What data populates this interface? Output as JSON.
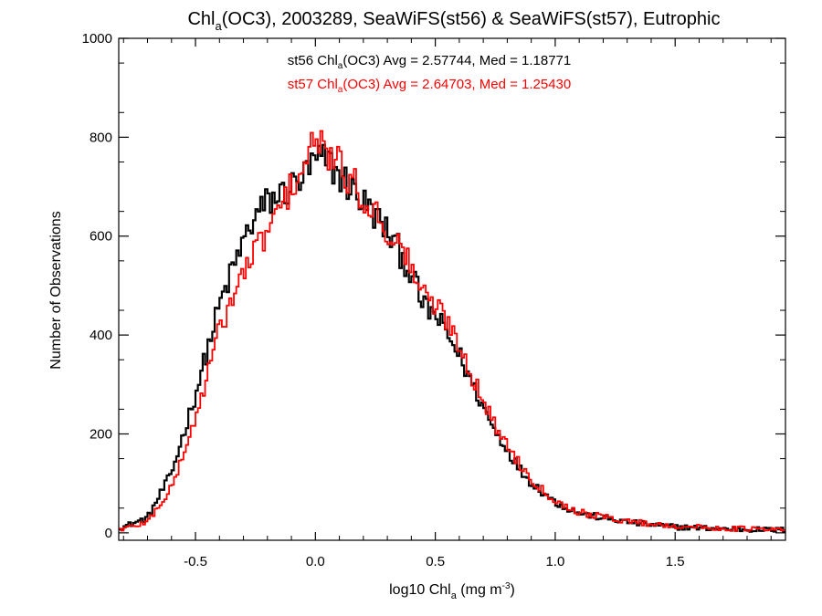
{
  "chart_data": {
    "type": "line",
    "title_parts": {
      "base": "Chl",
      "sub": "a",
      "rest": "(OC3), 2003289, SeaWiFS(st56) & SeaWiFS(st57), Eutrophic"
    },
    "xlabel_parts": {
      "base": "log10 Chl",
      "sub": "a",
      "mid": " (mg m",
      "sup": "-3",
      "end": ")"
    },
    "ylabel": "Number of Observations",
    "xlim": [
      -0.82,
      1.96
    ],
    "ylim": [
      -15,
      1000
    ],
    "xticks": [
      {
        "value": -0.5,
        "label": "-0.5"
      },
      {
        "value": 0.0,
        "label": "0.0"
      },
      {
        "value": 0.5,
        "label": "0.5"
      },
      {
        "value": 1.0,
        "label": "1.0"
      },
      {
        "value": 1.5,
        "label": "1.5"
      }
    ],
    "yticks": [
      {
        "value": 0,
        "label": "0"
      },
      {
        "value": 200,
        "label": "200"
      },
      {
        "value": 400,
        "label": "400"
      },
      {
        "value": 600,
        "label": "600"
      },
      {
        "value": 800,
        "label": "800"
      },
      {
        "value": 1000,
        "label": "1000"
      }
    ],
    "grid": false,
    "legend_position": "top-center",
    "series": [
      {
        "name": "st56",
        "legend_parts": {
          "pre": "st56 Chl",
          "sub": "a",
          "post": "(OC3) Avg = 2.57744, Med = 1.18771"
        },
        "color": "#000000",
        "step": "histogram",
        "points": [
          [
            -0.8,
            12
          ],
          [
            -0.7,
            30
          ],
          [
            -0.6,
            120
          ],
          [
            -0.5,
            280
          ],
          [
            -0.45,
            370
          ],
          [
            -0.4,
            460
          ],
          [
            -0.35,
            525
          ],
          [
            -0.3,
            590
          ],
          [
            -0.25,
            640
          ],
          [
            -0.2,
            668
          ],
          [
            -0.15,
            682
          ],
          [
            -0.1,
            698
          ],
          [
            -0.05,
            718
          ],
          [
            0.0,
            752
          ],
          [
            0.05,
            752
          ],
          [
            0.1,
            722
          ],
          [
            0.15,
            698
          ],
          [
            0.2,
            668
          ],
          [
            0.25,
            642
          ],
          [
            0.3,
            608
          ],
          [
            0.35,
            570
          ],
          [
            0.4,
            525
          ],
          [
            0.45,
            458
          ],
          [
            0.5,
            440
          ],
          [
            0.55,
            400
          ],
          [
            0.6,
            360
          ],
          [
            0.65,
            305
          ],
          [
            0.7,
            255
          ],
          [
            0.75,
            205
          ],
          [
            0.8,
            170
          ],
          [
            0.85,
            130
          ],
          [
            0.9,
            102
          ],
          [
            0.95,
            82
          ],
          [
            1.0,
            62
          ],
          [
            1.05,
            50
          ],
          [
            1.1,
            40
          ],
          [
            1.2,
            30
          ],
          [
            1.3,
            22
          ],
          [
            1.4,
            16
          ],
          [
            1.5,
            12
          ],
          [
            1.6,
            10
          ],
          [
            1.7,
            8
          ],
          [
            1.8,
            7
          ],
          [
            1.9,
            6
          ],
          [
            1.96,
            6
          ]
        ]
      },
      {
        "name": "st57",
        "legend_parts": {
          "pre": "st57 Chl",
          "sub": "a",
          "post": "(OC3) Avg = 2.64703, Med = 1.25430"
        },
        "color": "#ff0000",
        "step": "histogram",
        "points": [
          [
            -0.8,
            8
          ],
          [
            -0.7,
            22
          ],
          [
            -0.6,
            90
          ],
          [
            -0.5,
            230
          ],
          [
            -0.45,
            320
          ],
          [
            -0.4,
            410
          ],
          [
            -0.35,
            470
          ],
          [
            -0.3,
            525
          ],
          [
            -0.25,
            570
          ],
          [
            -0.2,
            610
          ],
          [
            -0.15,
            650
          ],
          [
            -0.1,
            700
          ],
          [
            -0.05,
            740
          ],
          [
            0.0,
            790
          ],
          [
            0.05,
            770
          ],
          [
            0.1,
            740
          ],
          [
            0.15,
            710
          ],
          [
            0.2,
            678
          ],
          [
            0.25,
            648
          ],
          [
            0.3,
            612
          ],
          [
            0.35,
            580
          ],
          [
            0.4,
            540
          ],
          [
            0.45,
            480
          ],
          [
            0.5,
            460
          ],
          [
            0.55,
            430
          ],
          [
            0.6,
            382
          ],
          [
            0.65,
            322
          ],
          [
            0.7,
            268
          ],
          [
            0.75,
            215
          ],
          [
            0.8,
            180
          ],
          [
            0.85,
            140
          ],
          [
            0.9,
            110
          ],
          [
            0.95,
            86
          ],
          [
            1.0,
            66
          ],
          [
            1.05,
            52
          ],
          [
            1.1,
            42
          ],
          [
            1.2,
            32
          ],
          [
            1.3,
            24
          ],
          [
            1.4,
            18
          ],
          [
            1.5,
            14
          ],
          [
            1.6,
            11
          ],
          [
            1.7,
            9
          ],
          [
            1.8,
            8
          ],
          [
            1.9,
            6
          ],
          [
            1.96,
            6
          ]
        ]
      }
    ]
  }
}
